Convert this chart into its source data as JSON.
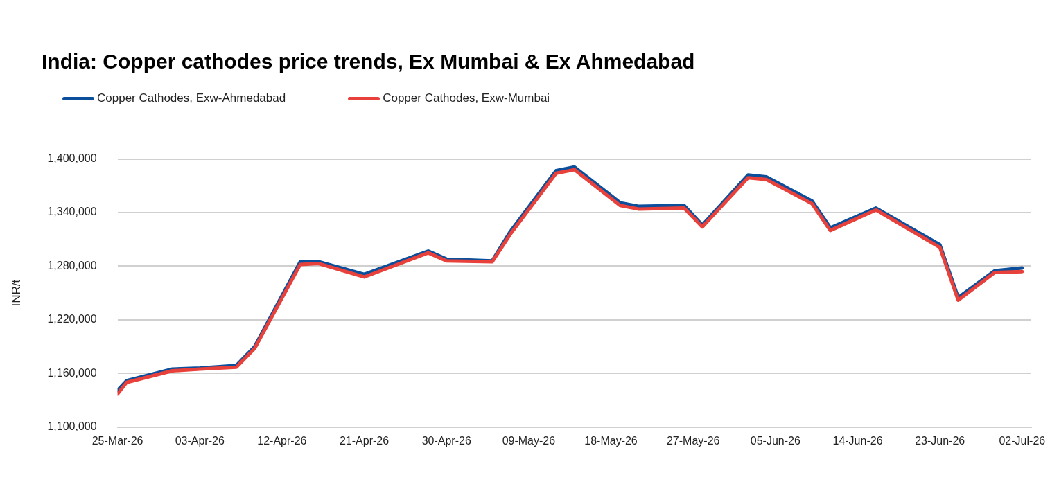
{
  "chart_data": {
    "type": "line",
    "title": "India: Copper cathodes price trends, Ex Mumbai & Ex Ahmedabad",
    "ylabel": "INR/t",
    "x": [
      "--03-25",
      "--03-26",
      "--03-31",
      "--04-03",
      "--04-07",
      "--04-09",
      "--04-14",
      "--04-16",
      "--04-21",
      "--04-28",
      "--04-30",
      "--05-05",
      "--05-07",
      "--05-12",
      "--05-14",
      "--05-19",
      "--05-21",
      "--05-26",
      "--05-28",
      "--06-02",
      "--06-04",
      "--06-09",
      "--06-11",
      "--06-16",
      "--06-23",
      "--06-25",
      "--06-29",
      "--07-02"
    ],
    "series": [
      {
        "name": "Copper Cathodes, Exw-Ahmedabad",
        "color": "#0b4f9c",
        "values": [
          1141000,
          1152000,
          1165000,
          1166000,
          1169000,
          1190000,
          1285000,
          1285000,
          1271000,
          1297000,
          1288000,
          1286000,
          1319000,
          1387000,
          1391000,
          1351000,
          1347000,
          1348000,
          1326000,
          1382000,
          1380000,
          1353000,
          1323000,
          1345000,
          1304000,
          1245000,
          1275000,
          1278000
        ]
      },
      {
        "name": "Copper Cathodes, Exw-Mumbai",
        "color": "#e8403a",
        "values": [
          1137000,
          1150000,
          1163000,
          1165000,
          1167000,
          1188000,
          1282000,
          1283000,
          1268000,
          1295000,
          1286000,
          1285000,
          1316000,
          1384000,
          1388000,
          1348000,
          1344000,
          1345000,
          1324000,
          1379000,
          1377000,
          1350000,
          1320000,
          1343000,
          1301000,
          1242000,
          1273000,
          1274000
        ]
      }
    ],
    "xlim": [
      "--03-25",
      "--07-03"
    ],
    "xticks": [
      {
        "value": "--03-25",
        "label": "25-Mar-26"
      },
      {
        "value": "--04-03",
        "label": "03-Apr-26"
      },
      {
        "value": "--04-12",
        "label": "12-Apr-26"
      },
      {
        "value": "--04-21",
        "label": "21-Apr-26"
      },
      {
        "value": "--04-30",
        "label": "30-Apr-26"
      },
      {
        "value": "--05-09",
        "label": "09-May-26"
      },
      {
        "value": "--05-18",
        "label": "18-May-26"
      },
      {
        "value": "--05-27",
        "label": "27-May-26"
      },
      {
        "value": "--06-05",
        "label": "05-Jun-26"
      },
      {
        "value": "--06-14",
        "label": "14-Jun-26"
      },
      {
        "value": "--06-23",
        "label": "23-Jun-26"
      },
      {
        "value": "--07-02",
        "label": "02-Jul-26"
      }
    ],
    "ylim": [
      1100000,
      1400000
    ],
    "yticks": [
      {
        "value": 1100000,
        "label": "1,100,000"
      },
      {
        "value": 1160000,
        "label": "1,160,000"
      },
      {
        "value": 1220000,
        "label": "1,220,000"
      },
      {
        "value": 1280000,
        "label": "1,280,000"
      },
      {
        "value": 1340000,
        "label": "1,340,000"
      },
      {
        "value": 1400000,
        "label": "1,400,000"
      }
    ],
    "grid": "y",
    "legend": "top left",
    "marker": "none",
    "line_style": "solid"
  }
}
